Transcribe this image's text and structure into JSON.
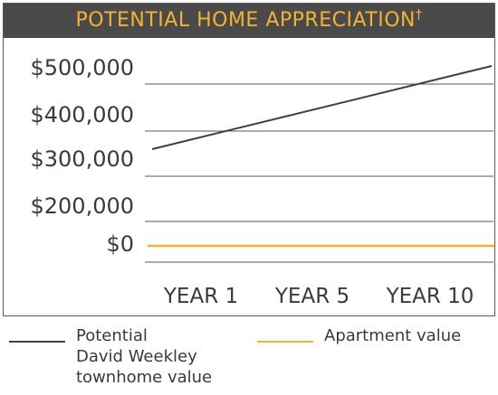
{
  "chart_data": {
    "type": "line",
    "title": "POTENTIAL HOME APPRECIATION",
    "title_mark": "†",
    "categories": [
      "YEAR 1",
      "YEAR 5",
      "YEAR 10"
    ],
    "y_ticks": [
      {
        "label": "$500,000"
      },
      {
        "label": "$400,000"
      },
      {
        "label": "$300,000"
      },
      {
        "label": "$200,000"
      },
      {
        "label": "$0"
      }
    ],
    "series": [
      {
        "name": "Potential\nDavid Weekley\ntownhome value",
        "color": "#3f3f3f",
        "start_value": 300000,
        "end_value": 500000
      },
      {
        "name": "Apartment value",
        "color": "#f3b234",
        "start_value": 0,
        "end_value": 0
      }
    ],
    "grid": true,
    "legend_position": "bottom"
  },
  "colors": {
    "title_background": "#4a4a4a",
    "title_text": "#f3b234",
    "gridline": "#555555",
    "text": "#3a3a3a"
  }
}
